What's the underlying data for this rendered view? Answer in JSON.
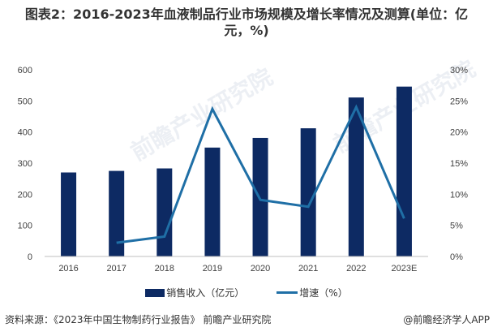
{
  "title": {
    "line1": "图表2：2016-2023年血液制品行业市场规模及增长率情况及测算(单位：亿",
    "line2": "元，%)"
  },
  "colors": {
    "bar": "#0d2a63",
    "line": "#1f6fa6",
    "axis": "#bfbfbf",
    "text": "#404040"
  },
  "chart_data": {
    "type": "bar",
    "title": "图表2：2016-2023年血液制品行业市场规模及增长率情况及测算(单位：亿元，%)",
    "categories": [
      "2016",
      "2017",
      "2018",
      "2019",
      "2020",
      "2021",
      "2022",
      "2023E"
    ],
    "series": [
      {
        "name": "销售收入（亿元）",
        "type": "bar",
        "axis": "left",
        "values": [
          270,
          275,
          283,
          350,
          381,
          412,
          511,
          546
        ]
      },
      {
        "name": "增速（%）",
        "type": "line",
        "axis": "right",
        "values": [
          null,
          2.2,
          3.2,
          23.7,
          9.1,
          8.0,
          24.0,
          6.1
        ]
      }
    ],
    "xlabel": "",
    "ylabel": "",
    "ylim": [
      0,
      600
    ],
    "yticks": [
      "0",
      "100",
      "200",
      "300",
      "400",
      "500",
      "600"
    ],
    "y2lim": [
      0,
      30
    ],
    "y2ticks": [
      "0%",
      "5%",
      "10%",
      "15%",
      "20%",
      "25%",
      "30%"
    ],
    "grid": false,
    "legend_position": "bottom"
  },
  "legend": {
    "bar_label": "销售收入（亿元）",
    "line_label": "增速（%）"
  },
  "footer": {
    "source": "资料来源：《2023年中国生物制药行业报告》 前瞻产业研究院",
    "credit": "@前瞻经济学人APP"
  },
  "watermark": {
    "text": "前瞻产业研究院"
  }
}
